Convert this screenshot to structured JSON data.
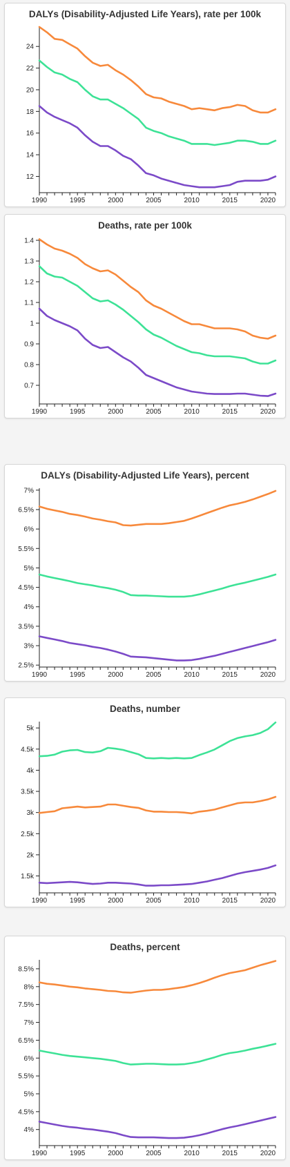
{
  "colors": {
    "orange": "#f7893b",
    "green": "#3de296",
    "purple": "#7b4ac8"
  },
  "chart_data": [
    {
      "type": "line",
      "title": "DALYs (Disability-Adjusted Life Years), rate per 100k",
      "xlim": [
        1990,
        2021
      ],
      "ylim": [
        10.5,
        25.8
      ],
      "xticks": [
        1990,
        1995,
        2000,
        2005,
        2010,
        2015,
        2020
      ],
      "yticks": [
        12,
        14,
        16,
        18,
        20,
        22,
        24
      ],
      "ytick_labels": [
        "12",
        "14",
        "16",
        "18",
        "20",
        "22",
        "24"
      ],
      "x": [
        1990,
        1991,
        1992,
        1993,
        1994,
        1995,
        1996,
        1997,
        1998,
        1999,
        2000,
        2001,
        2002,
        2003,
        2004,
        2005,
        2006,
        2007,
        2008,
        2009,
        2010,
        2011,
        2012,
        2013,
        2014,
        2015,
        2016,
        2017,
        2018,
        2019,
        2020,
        2021
      ],
      "series": [
        {
          "color": "orange",
          "values": [
            25.8,
            25.3,
            24.7,
            24.6,
            24.2,
            23.8,
            23.1,
            22.5,
            22.2,
            22.3,
            21.8,
            21.4,
            20.9,
            20.3,
            19.6,
            19.3,
            19.2,
            18.9,
            18.7,
            18.5,
            18.2,
            18.3,
            18.2,
            18.1,
            18.3,
            18.4,
            18.6,
            18.5,
            18.1,
            17.9,
            17.9,
            18.2
          ]
        },
        {
          "color": "green",
          "values": [
            22.7,
            22.1,
            21.6,
            21.4,
            21.0,
            20.7,
            20.0,
            19.4,
            19.1,
            19.1,
            18.7,
            18.3,
            17.8,
            17.3,
            16.5,
            16.2,
            16.0,
            15.7,
            15.5,
            15.3,
            15.0,
            15.0,
            15.0,
            14.9,
            15.0,
            15.1,
            15.3,
            15.3,
            15.2,
            15.0,
            15.0,
            15.3
          ]
        },
        {
          "color": "purple",
          "values": [
            18.5,
            17.9,
            17.5,
            17.2,
            16.9,
            16.5,
            15.8,
            15.2,
            14.8,
            14.8,
            14.4,
            13.9,
            13.6,
            13.0,
            12.3,
            12.1,
            11.8,
            11.6,
            11.4,
            11.2,
            11.1,
            11.0,
            11.0,
            11.0,
            11.1,
            11.2,
            11.5,
            11.6,
            11.6,
            11.6,
            11.7,
            12.0
          ]
        }
      ]
    },
    {
      "type": "line",
      "title": "Deaths, rate per 100k",
      "xlim": [
        1990,
        2021
      ],
      "ylim": [
        0.61,
        1.41
      ],
      "xticks": [
        1990,
        1995,
        2000,
        2005,
        2010,
        2015,
        2020
      ],
      "yticks": [
        0.7,
        0.8,
        0.9,
        1.0,
        1.1,
        1.2,
        1.3,
        1.4
      ],
      "ytick_labels": [
        "0.7",
        "0.8",
        "0.9",
        "1",
        "1.1",
        "1.2",
        "1.3",
        "1.4"
      ],
      "x": [
        1990,
        1991,
        1992,
        1993,
        1994,
        1995,
        1996,
        1997,
        1998,
        1999,
        2000,
        2001,
        2002,
        2003,
        2004,
        2005,
        2006,
        2007,
        2008,
        2009,
        2010,
        2011,
        2012,
        2013,
        2014,
        2015,
        2016,
        2017,
        2018,
        2019,
        2020,
        2021
      ],
      "series": [
        {
          "color": "orange",
          "values": [
            1.405,
            1.38,
            1.36,
            1.35,
            1.335,
            1.315,
            1.285,
            1.265,
            1.25,
            1.255,
            1.235,
            1.205,
            1.175,
            1.15,
            1.11,
            1.085,
            1.07,
            1.05,
            1.03,
            1.01,
            0.995,
            0.995,
            0.985,
            0.975,
            0.975,
            0.975,
            0.97,
            0.96,
            0.94,
            0.93,
            0.925,
            0.94
          ]
        },
        {
          "color": "green",
          "values": [
            1.275,
            1.24,
            1.225,
            1.22,
            1.2,
            1.18,
            1.15,
            1.12,
            1.105,
            1.11,
            1.09,
            1.065,
            1.035,
            1.005,
            0.97,
            0.945,
            0.93,
            0.91,
            0.89,
            0.875,
            0.86,
            0.855,
            0.845,
            0.84,
            0.84,
            0.84,
            0.835,
            0.83,
            0.815,
            0.805,
            0.805,
            0.82
          ]
        },
        {
          "color": "purple",
          "values": [
            1.07,
            1.035,
            1.015,
            1.0,
            0.985,
            0.965,
            0.925,
            0.895,
            0.88,
            0.885,
            0.86,
            0.835,
            0.815,
            0.785,
            0.75,
            0.735,
            0.72,
            0.705,
            0.69,
            0.68,
            0.67,
            0.665,
            0.66,
            0.658,
            0.658,
            0.658,
            0.66,
            0.66,
            0.655,
            0.65,
            0.648,
            0.66
          ]
        }
      ]
    },
    {
      "type": "line",
      "title": "DALYs (Disability-Adjusted Life Years), percent",
      "xlim": [
        1990,
        2021
      ],
      "ylim": [
        2.45,
        7.05
      ],
      "xticks": [
        1990,
        1995,
        2000,
        2005,
        2010,
        2015,
        2020
      ],
      "yticks": [
        2.5,
        3,
        3.5,
        4,
        4.5,
        5,
        5.5,
        6,
        6.5,
        7
      ],
      "ytick_labels": [
        "2.5%",
        "3%",
        "3.5%",
        "4%",
        "4.5%",
        "5%",
        "5.5%",
        "6%",
        "6.5%",
        "7%"
      ],
      "x": [
        1990,
        1991,
        1992,
        1993,
        1994,
        1995,
        1996,
        1997,
        1998,
        1999,
        2000,
        2001,
        2002,
        2003,
        2004,
        2005,
        2006,
        2007,
        2008,
        2009,
        2010,
        2011,
        2012,
        2013,
        2014,
        2015,
        2016,
        2017,
        2018,
        2019,
        2020,
        2021
      ],
      "series": [
        {
          "color": "orange",
          "values": [
            6.58,
            6.52,
            6.48,
            6.44,
            6.39,
            6.36,
            6.32,
            6.27,
            6.24,
            6.2,
            6.17,
            6.1,
            6.09,
            6.11,
            6.13,
            6.13,
            6.13,
            6.15,
            6.18,
            6.21,
            6.27,
            6.34,
            6.41,
            6.48,
            6.55,
            6.61,
            6.65,
            6.7,
            6.76,
            6.83,
            6.9,
            6.98
          ]
        },
        {
          "color": "green",
          "values": [
            4.83,
            4.78,
            4.74,
            4.7,
            4.66,
            4.61,
            4.58,
            4.55,
            4.51,
            4.48,
            4.44,
            4.38,
            4.3,
            4.29,
            4.29,
            4.28,
            4.27,
            4.26,
            4.26,
            4.26,
            4.28,
            4.32,
            4.37,
            4.42,
            4.47,
            4.53,
            4.58,
            4.62,
            4.67,
            4.72,
            4.77,
            4.83
          ]
        },
        {
          "color": "purple",
          "values": [
            3.24,
            3.2,
            3.16,
            3.12,
            3.07,
            3.04,
            3.01,
            2.97,
            2.94,
            2.9,
            2.85,
            2.79,
            2.72,
            2.71,
            2.7,
            2.68,
            2.66,
            2.64,
            2.62,
            2.62,
            2.63,
            2.66,
            2.7,
            2.74,
            2.79,
            2.84,
            2.89,
            2.94,
            2.99,
            3.04,
            3.09,
            3.15
          ]
        }
      ]
    },
    {
      "type": "line",
      "title": "Deaths, number",
      "xlim": [
        1990,
        2021
      ],
      "ylim": [
        1100,
        5150
      ],
      "xticks": [
        1990,
        1995,
        2000,
        2005,
        2010,
        2015,
        2020
      ],
      "yticks": [
        1500,
        2000,
        2500,
        3000,
        3500,
        4000,
        4500,
        5000
      ],
      "ytick_labels": [
        "1.5k",
        "2k",
        "2.5k",
        "3k",
        "3.5k",
        "4k",
        "4.5k",
        "5k"
      ],
      "x": [
        1990,
        1991,
        1992,
        1993,
        1994,
        1995,
        1996,
        1997,
        1998,
        1999,
        2000,
        2001,
        2002,
        2003,
        2004,
        2005,
        2006,
        2007,
        2008,
        2009,
        2010,
        2011,
        2012,
        2013,
        2014,
        2015,
        2016,
        2017,
        2018,
        2019,
        2020,
        2021
      ],
      "series": [
        {
          "color": "green",
          "values": [
            4330,
            4340,
            4370,
            4440,
            4470,
            4480,
            4430,
            4420,
            4450,
            4530,
            4510,
            4480,
            4430,
            4380,
            4290,
            4280,
            4290,
            4280,
            4290,
            4280,
            4290,
            4360,
            4420,
            4490,
            4590,
            4690,
            4760,
            4800,
            4830,
            4880,
            4970,
            5130
          ]
        },
        {
          "color": "orange",
          "values": [
            2990,
            3010,
            3030,
            3100,
            3120,
            3140,
            3120,
            3130,
            3140,
            3190,
            3190,
            3160,
            3130,
            3110,
            3050,
            3020,
            3020,
            3010,
            3010,
            3000,
            2980,
            3020,
            3040,
            3070,
            3120,
            3170,
            3220,
            3240,
            3240,
            3270,
            3310,
            3370
          ]
        },
        {
          "color": "purple",
          "values": [
            1340,
            1330,
            1340,
            1350,
            1360,
            1350,
            1330,
            1310,
            1320,
            1340,
            1340,
            1330,
            1320,
            1300,
            1270,
            1270,
            1280,
            1280,
            1290,
            1300,
            1310,
            1340,
            1370,
            1410,
            1450,
            1500,
            1550,
            1590,
            1620,
            1650,
            1690,
            1750
          ]
        }
      ]
    },
    {
      "type": "line",
      "title": "Deaths, percent",
      "xlim": [
        1990,
        2021
      ],
      "ylim": [
        3.55,
        8.75
      ],
      "xticks": [
        1990,
        1995,
        2000,
        2005,
        2010,
        2015,
        2020
      ],
      "yticks": [
        4,
        4.5,
        5,
        5.5,
        6,
        6.5,
        7,
        7.5,
        8,
        8.5
      ],
      "ytick_labels": [
        "4%",
        "4.5%",
        "5%",
        "5.5%",
        "6%",
        "6.5%",
        "7%",
        "7.5%",
        "8%",
        "8.5%"
      ],
      "x": [
        1990,
        1991,
        1992,
        1993,
        1994,
        1995,
        1996,
        1997,
        1998,
        1999,
        2000,
        2001,
        2002,
        2003,
        2004,
        2005,
        2006,
        2007,
        2008,
        2009,
        2010,
        2011,
        2012,
        2013,
        2014,
        2015,
        2016,
        2017,
        2018,
        2019,
        2020,
        2021
      ],
      "series": [
        {
          "color": "orange",
          "values": [
            8.12,
            8.08,
            8.06,
            8.03,
            8.0,
            7.98,
            7.95,
            7.93,
            7.91,
            7.88,
            7.87,
            7.84,
            7.83,
            7.86,
            7.89,
            7.91,
            7.91,
            7.93,
            7.96,
            7.99,
            8.04,
            8.1,
            8.17,
            8.25,
            8.32,
            8.38,
            8.42,
            8.46,
            8.53,
            8.6,
            8.66,
            8.72
          ]
        },
        {
          "color": "green",
          "values": [
            6.21,
            6.17,
            6.13,
            6.09,
            6.06,
            6.04,
            6.02,
            6.0,
            5.98,
            5.95,
            5.92,
            5.86,
            5.82,
            5.83,
            5.84,
            5.84,
            5.83,
            5.82,
            5.82,
            5.83,
            5.86,
            5.9,
            5.96,
            6.02,
            6.09,
            6.14,
            6.17,
            6.21,
            6.26,
            6.3,
            6.35,
            6.4
          ]
        },
        {
          "color": "purple",
          "values": [
            4.22,
            4.18,
            4.14,
            4.1,
            4.07,
            4.05,
            4.02,
            4.0,
            3.97,
            3.94,
            3.9,
            3.84,
            3.79,
            3.78,
            3.78,
            3.78,
            3.77,
            3.76,
            3.76,
            3.77,
            3.8,
            3.84,
            3.89,
            3.95,
            4.01,
            4.06,
            4.1,
            4.15,
            4.2,
            4.25,
            4.3,
            4.35
          ]
        }
      ]
    }
  ]
}
